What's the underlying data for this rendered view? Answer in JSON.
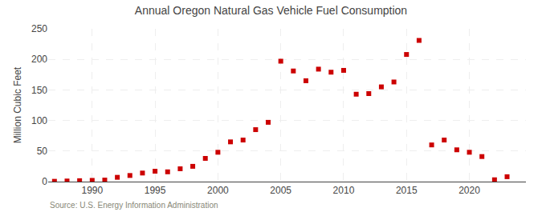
{
  "chart_data": {
    "type": "scatter",
    "title": "Annual Oregon Natural Gas Vehicle Fuel Consumption",
    "ylabel": "Million Cubic Feet",
    "annotations": [
      "Source: U.S. Energy Information Administration"
    ],
    "x": [
      1987,
      1988,
      1989,
      1990,
      1991,
      1992,
      1993,
      1994,
      1995,
      1996,
      1997,
      1998,
      1999,
      2000,
      2001,
      2002,
      2003,
      2004,
      2005,
      2006,
      2007,
      2008,
      2009,
      2010,
      2011,
      2012,
      2013,
      2014,
      2015,
      2016,
      2017,
      2018,
      2019,
      2020,
      2021,
      2022,
      2023
    ],
    "values": [
      0.5,
      1.0,
      1.5,
      2.0,
      2.5,
      7.0,
      10.0,
      14.0,
      17.0,
      16.0,
      21.0,
      25.0,
      38.0,
      48.0,
      65.0,
      68.0,
      85.0,
      97.0,
      197.0,
      181.0,
      165.0,
      184.0,
      179.0,
      182.0,
      143.0,
      144.0,
      155.0,
      163.0,
      208.0,
      231.0,
      60.0,
      68.0,
      52.0,
      48.0,
      41.0,
      3.0,
      8.0
    ],
    "color": "#cc0000",
    "marker": "square",
    "xlim": [
      1986.5,
      2024.5
    ],
    "ylim": [
      0,
      250
    ],
    "xticks": [
      1990,
      1995,
      2000,
      2005,
      2010,
      2015,
      2020
    ],
    "yticks": [
      0,
      50,
      100,
      150,
      200,
      250
    ],
    "grid": true
  }
}
